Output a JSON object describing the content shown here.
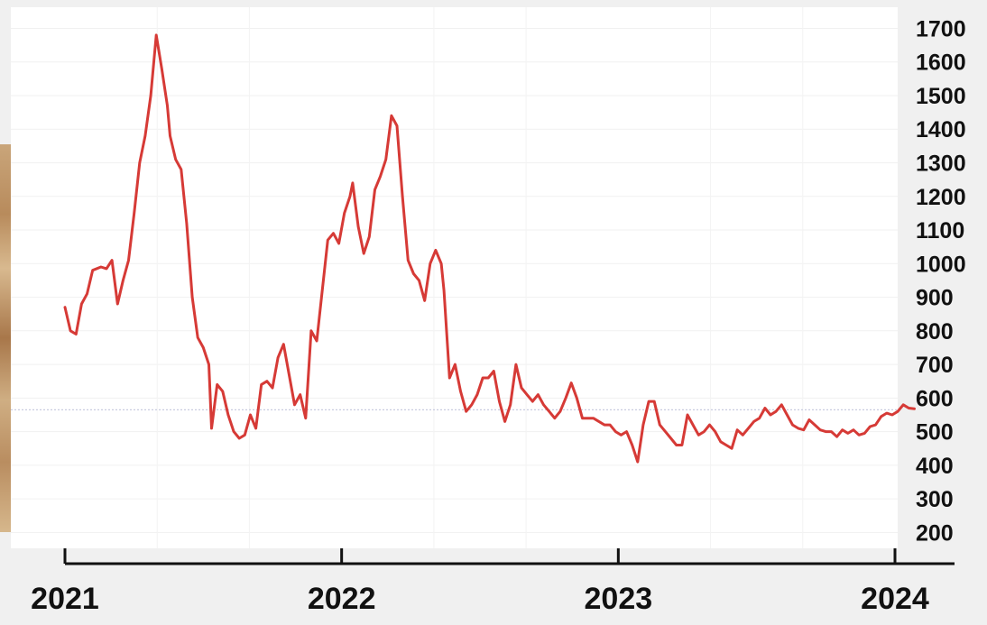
{
  "chart_data": {
    "type": "line",
    "title": "",
    "xlabel": "",
    "ylabel": "",
    "x_ticks": [
      "2021",
      "2022",
      "2023",
      "2024"
    ],
    "y_ticks": [
      200,
      300,
      400,
      500,
      600,
      700,
      800,
      900,
      1000,
      1100,
      1200,
      1300,
      1400,
      1500,
      1600,
      1700
    ],
    "ylim": [
      150,
      1720
    ],
    "xlim": [
      2021.0,
      2024.0
    ],
    "y_axis_position": "right",
    "grid": true,
    "reference_line": 565,
    "series": [
      {
        "color": "#d63a36",
        "points": [
          [
            2021.0,
            870
          ],
          [
            2021.02,
            800
          ],
          [
            2021.04,
            790
          ],
          [
            2021.06,
            880
          ],
          [
            2021.08,
            910
          ],
          [
            2021.1,
            980
          ],
          [
            2021.13,
            990
          ],
          [
            2021.15,
            985
          ],
          [
            2021.17,
            1010
          ],
          [
            2021.19,
            880
          ],
          [
            2021.21,
            950
          ],
          [
            2021.23,
            1010
          ],
          [
            2021.25,
            1150
          ],
          [
            2021.27,
            1300
          ],
          [
            2021.29,
            1380
          ],
          [
            2021.31,
            1500
          ],
          [
            2021.33,
            1680
          ],
          [
            2021.35,
            1580
          ],
          [
            2021.37,
            1470
          ],
          [
            2021.38,
            1380
          ],
          [
            2021.4,
            1310
          ],
          [
            2021.42,
            1280
          ],
          [
            2021.44,
            1120
          ],
          [
            2021.46,
            900
          ],
          [
            2021.48,
            780
          ],
          [
            2021.5,
            750
          ],
          [
            2021.52,
            700
          ],
          [
            2021.53,
            510
          ],
          [
            2021.55,
            640
          ],
          [
            2021.57,
            620
          ],
          [
            2021.59,
            550
          ],
          [
            2021.61,
            500
          ],
          [
            2021.63,
            480
          ],
          [
            2021.65,
            490
          ],
          [
            2021.67,
            550
          ],
          [
            2021.69,
            510
          ],
          [
            2021.71,
            640
          ],
          [
            2021.73,
            650
          ],
          [
            2021.75,
            630
          ],
          [
            2021.77,
            720
          ],
          [
            2021.79,
            760
          ],
          [
            2021.81,
            670
          ],
          [
            2021.83,
            580
          ],
          [
            2021.85,
            610
          ],
          [
            2021.87,
            540
          ],
          [
            2021.89,
            800
          ],
          [
            2021.91,
            770
          ],
          [
            2021.93,
            920
          ],
          [
            2021.95,
            1070
          ],
          [
            2021.97,
            1090
          ],
          [
            2021.99,
            1060
          ],
          [
            2022.01,
            1150
          ],
          [
            2022.03,
            1200
          ],
          [
            2022.04,
            1240
          ],
          [
            2022.06,
            1110
          ],
          [
            2022.08,
            1030
          ],
          [
            2022.1,
            1080
          ],
          [
            2022.12,
            1220
          ],
          [
            2022.14,
            1260
          ],
          [
            2022.16,
            1310
          ],
          [
            2022.18,
            1440
          ],
          [
            2022.2,
            1410
          ],
          [
            2022.22,
            1200
          ],
          [
            2022.24,
            1010
          ],
          [
            2022.26,
            970
          ],
          [
            2022.28,
            950
          ],
          [
            2022.3,
            890
          ],
          [
            2022.32,
            1000
          ],
          [
            2022.34,
            1040
          ],
          [
            2022.36,
            1000
          ],
          [
            2022.37,
            920
          ],
          [
            2022.39,
            660
          ],
          [
            2022.41,
            700
          ],
          [
            2022.43,
            620
          ],
          [
            2022.45,
            560
          ],
          [
            2022.47,
            580
          ],
          [
            2022.49,
            610
          ],
          [
            2022.51,
            660
          ],
          [
            2022.53,
            660
          ],
          [
            2022.55,
            680
          ],
          [
            2022.57,
            590
          ],
          [
            2022.59,
            530
          ],
          [
            2022.61,
            580
          ],
          [
            2022.63,
            700
          ],
          [
            2022.65,
            630
          ],
          [
            2022.67,
            610
          ],
          [
            2022.69,
            590
          ],
          [
            2022.71,
            610
          ],
          [
            2022.73,
            580
          ],
          [
            2022.75,
            560
          ],
          [
            2022.77,
            540
          ],
          [
            2022.79,
            560
          ],
          [
            2022.81,
            600
          ],
          [
            2022.83,
            645
          ],
          [
            2022.85,
            600
          ],
          [
            2022.87,
            540
          ],
          [
            2022.89,
            540
          ],
          [
            2022.91,
            540
          ],
          [
            2022.93,
            530
          ],
          [
            2022.95,
            520
          ],
          [
            2022.97,
            520
          ],
          [
            2022.99,
            500
          ],
          [
            2023.01,
            490
          ],
          [
            2023.03,
            500
          ],
          [
            2023.05,
            460
          ],
          [
            2023.07,
            410
          ],
          [
            2023.09,
            520
          ],
          [
            2023.11,
            590
          ],
          [
            2023.13,
            590
          ],
          [
            2023.15,
            520
          ],
          [
            2023.17,
            500
          ],
          [
            2023.19,
            480
          ],
          [
            2023.21,
            460
          ],
          [
            2023.23,
            460
          ],
          [
            2023.25,
            550
          ],
          [
            2023.27,
            520
          ],
          [
            2023.29,
            490
          ],
          [
            2023.31,
            500
          ],
          [
            2023.33,
            520
          ],
          [
            2023.35,
            500
          ],
          [
            2023.37,
            470
          ],
          [
            2023.39,
            460
          ],
          [
            2023.41,
            450
          ],
          [
            2023.43,
            505
          ],
          [
            2023.45,
            490
          ],
          [
            2023.47,
            510
          ],
          [
            2023.49,
            530
          ],
          [
            2023.51,
            540
          ],
          [
            2023.53,
            570
          ],
          [
            2023.55,
            550
          ],
          [
            2023.57,
            560
          ],
          [
            2023.59,
            580
          ],
          [
            2023.61,
            550
          ],
          [
            2023.63,
            520
          ],
          [
            2023.65,
            510
          ],
          [
            2023.67,
            505
          ],
          [
            2023.69,
            535
          ],
          [
            2023.71,
            520
          ],
          [
            2023.73,
            505
          ],
          [
            2023.75,
            500
          ],
          [
            2023.77,
            500
          ],
          [
            2023.79,
            485
          ],
          [
            2023.81,
            505
          ],
          [
            2023.83,
            495
          ],
          [
            2023.85,
            505
          ],
          [
            2023.87,
            490
          ],
          [
            2023.89,
            495
          ],
          [
            2023.91,
            515
          ],
          [
            2023.93,
            520
          ],
          [
            2023.95,
            545
          ],
          [
            2023.97,
            555
          ],
          [
            2023.99,
            550
          ],
          [
            2024.01,
            560
          ],
          [
            2024.03,
            580
          ],
          [
            2024.05,
            570
          ],
          [
            2024.07,
            568
          ]
        ]
      }
    ]
  }
}
